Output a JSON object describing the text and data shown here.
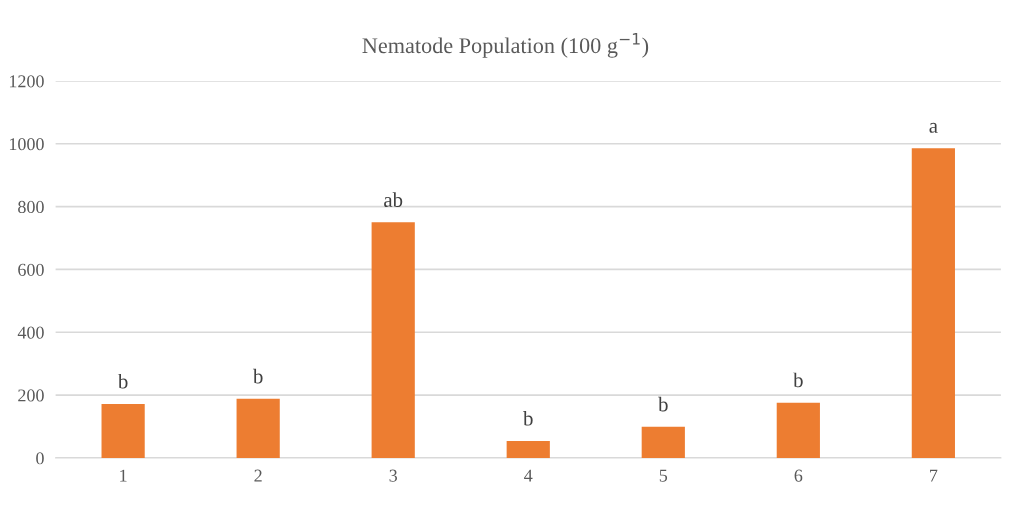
{
  "chart_data": {
    "type": "bar",
    "title": "Nematode Population (100 g$^{−1}$)",
    "categories": [
      "1",
      "2",
      "3",
      "4",
      "5",
      "6",
      "7"
    ],
    "values": [
      172,
      188,
      750,
      54,
      99,
      176,
      986
    ],
    "color": "#ed7d31",
    "ylim": [
      0,
      1200
    ],
    "yticks": [
      0,
      200,
      400,
      600,
      800,
      1000,
      1200
    ],
    "grid": "y",
    "annotations": [
      {
        "text": "b",
        "x": "1",
        "y": 172
      },
      {
        "text": "b",
        "x": "2",
        "y": 188
      },
      {
        "text": "ab",
        "x": "3",
        "y": 750
      },
      {
        "text": "b",
        "x": "4",
        "y": 54
      },
      {
        "text": "b",
        "x": "5",
        "y": 99
      },
      {
        "text": "b",
        "x": "6",
        "y": 176
      },
      {
        "text": "a",
        "x": "7",
        "y": 986
      }
    ]
  }
}
